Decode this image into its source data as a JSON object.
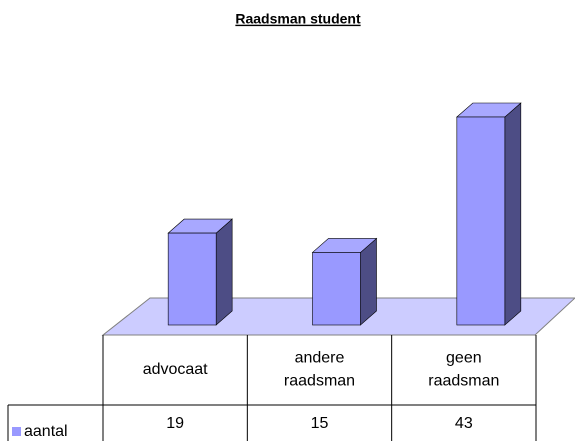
{
  "chart_data": {
    "type": "bar3d",
    "title": "Raadsman student",
    "categories": [
      "advocaat",
      "andere raadsman",
      "geen raadsman"
    ],
    "series": [
      {
        "name": "aantal",
        "color": "#9999ff",
        "values": [
          19,
          15,
          43
        ]
      }
    ]
  }
}
